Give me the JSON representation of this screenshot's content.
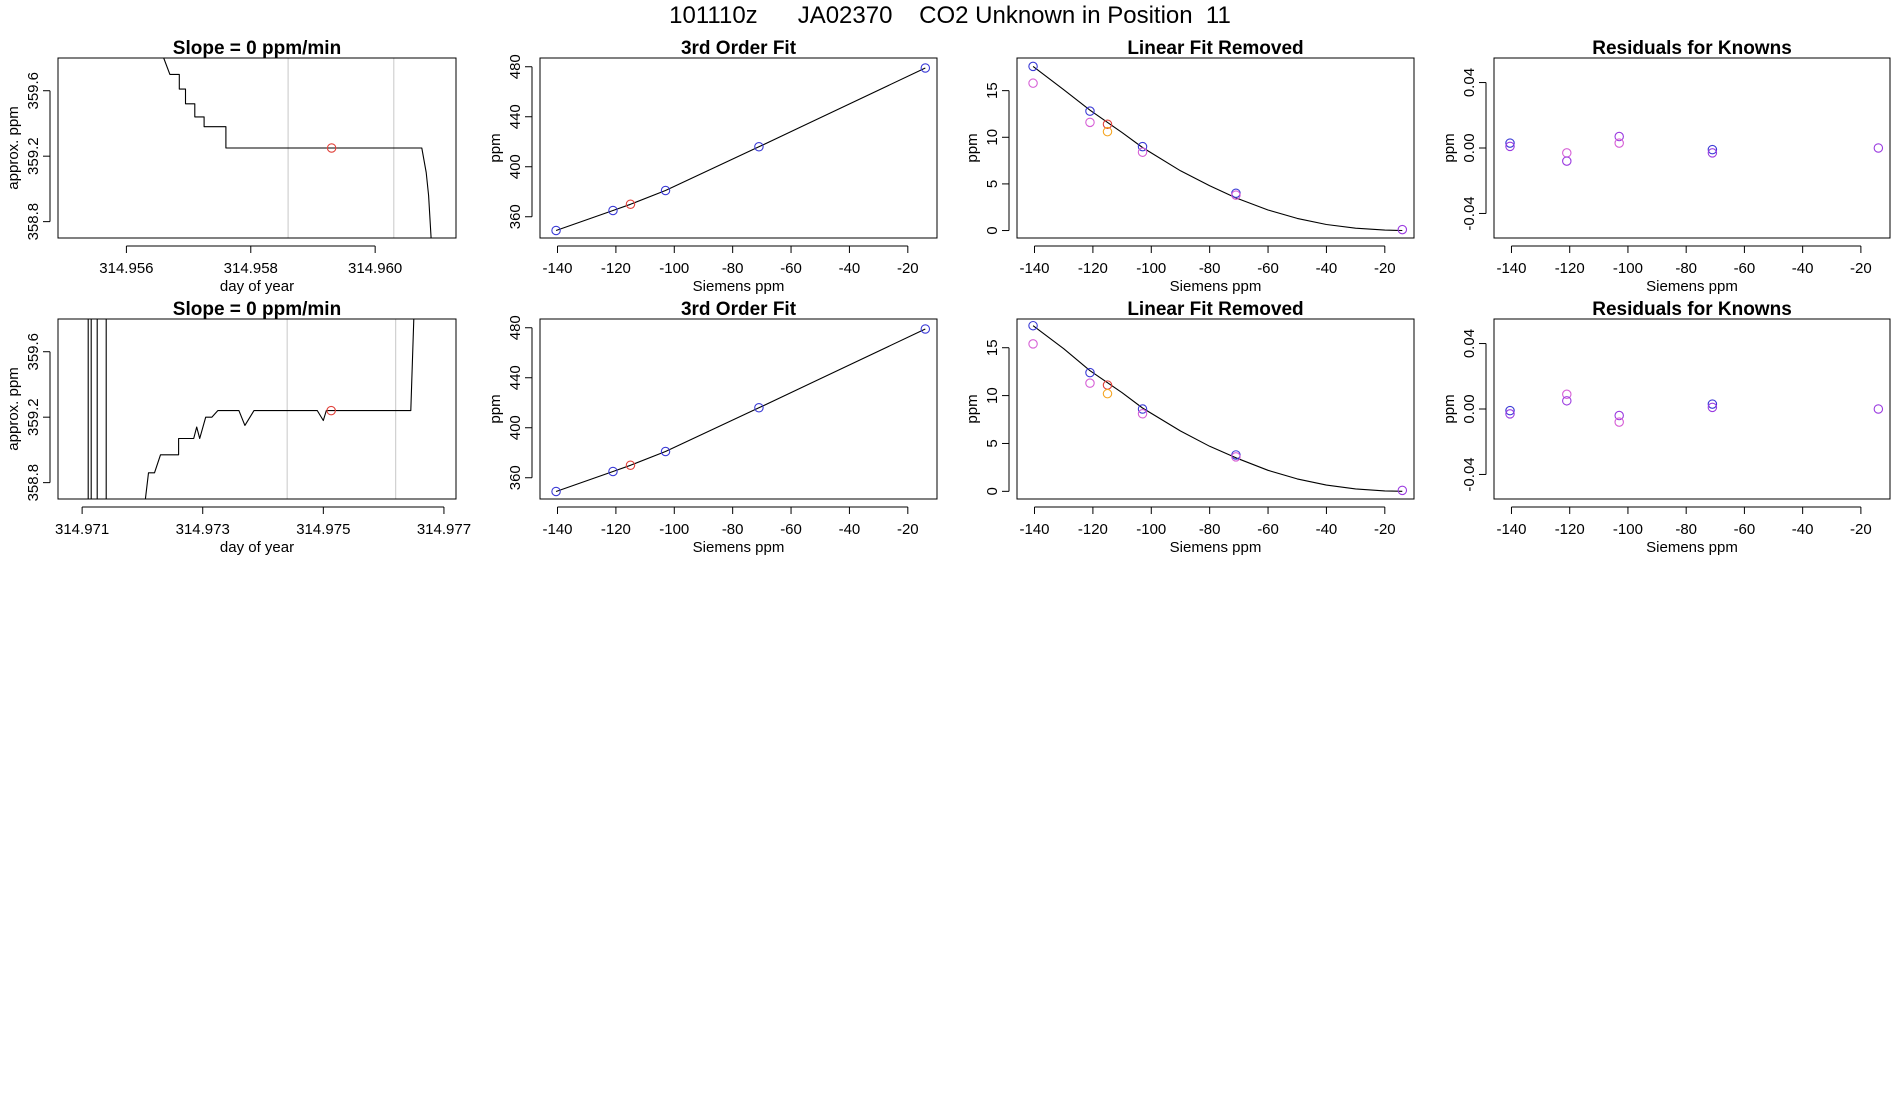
{
  "header": {
    "date_code": "101110z",
    "tank_id": "JA02370",
    "description": "CO2 Unknown in Position  11"
  },
  "colors": {
    "standard": "#3b3bd6",
    "unknown": "#e0413a",
    "purple": "#9b3be0",
    "magenta": "#d65fd6",
    "orange": "#f5a623",
    "line": "#000000",
    "grid": "#c8c8c8"
  },
  "chart_data": [
    {
      "id": "r1c1",
      "row": 0,
      "col": 0,
      "type": "line",
      "title": "Slope =  0  ppm/min",
      "xlabel": "day of year",
      "ylabel": "approx. ppm",
      "xlim": [
        314.9549,
        314.9613
      ],
      "ylim": [
        358.7,
        359.8
      ],
      "xticks": [
        314.956,
        314.958,
        314.96
      ],
      "xtick_labels": [
        "314.956",
        "314.958",
        "314.960"
      ],
      "yticks": [
        358.8,
        359.2,
        359.6
      ],
      "ytick_labels": [
        "358.8",
        "359.2",
        "359.6"
      ],
      "vlines": [
        314.9586,
        314.9603
      ],
      "trace": [
        [
          314.9566,
          359.8
        ],
        [
          314.9567,
          359.7
        ],
        [
          314.95685,
          359.7
        ],
        [
          314.95685,
          359.61
        ],
        [
          314.95695,
          359.61
        ],
        [
          314.95695,
          359.52
        ],
        [
          314.9571,
          359.52
        ],
        [
          314.9571,
          359.44
        ],
        [
          314.95725,
          359.44
        ],
        [
          314.95725,
          359.38
        ],
        [
          314.9576,
          359.38
        ],
        [
          314.9576,
          359.25
        ],
        [
          314.96075,
          359.25
        ],
        [
          314.96082,
          359.1
        ],
        [
          314.96086,
          358.96
        ],
        [
          314.9609,
          358.7
        ]
      ],
      "points": [
        {
          "x": 314.9593,
          "y": 359.25,
          "color": "unknown"
        }
      ]
    },
    {
      "id": "r1c2",
      "row": 0,
      "col": 1,
      "type": "scatter",
      "title": "3rd Order Fit",
      "xlabel": "Siemens ppm",
      "ylabel": "ppm",
      "xlim": [
        -146,
        -10
      ],
      "ylim": [
        343,
        487
      ],
      "xticks": [
        -140,
        -120,
        -100,
        -80,
        -60,
        -40,
        -20
      ],
      "xtick_labels": [
        "-140",
        "-120",
        "-100",
        "-80",
        "-60",
        "-40",
        "-20"
      ],
      "yticks": [
        360,
        400,
        440,
        480
      ],
      "ytick_labels": [
        "360",
        "400",
        "440",
        "480"
      ],
      "curve": [
        [
          -140.5,
          349
        ],
        [
          -121,
          365
        ],
        [
          -115,
          370
        ],
        [
          -103,
          381
        ],
        [
          -71,
          416
        ],
        [
          -14,
          479
        ]
      ],
      "points": [
        {
          "x": -140.5,
          "y": 349,
          "color": "standard"
        },
        {
          "x": -121,
          "y": 365,
          "color": "standard"
        },
        {
          "x": -115,
          "y": 370,
          "color": "unknown"
        },
        {
          "x": -103,
          "y": 381,
          "color": "standard"
        },
        {
          "x": -71,
          "y": 416,
          "color": "standard"
        },
        {
          "x": -14,
          "y": 479,
          "color": "standard"
        }
      ]
    },
    {
      "id": "r1c3",
      "row": 0,
      "col": 2,
      "type": "scatter",
      "title": "Linear Fit Removed",
      "xlabel": "Siemens ppm",
      "ylabel": "ppm",
      "xlim": [
        -146,
        -10
      ],
      "ylim": [
        -0.8,
        18.5
      ],
      "xticks": [
        -140,
        -120,
        -100,
        -80,
        -60,
        -40,
        -20
      ],
      "xtick_labels": [
        "-140",
        "-120",
        "-100",
        "-80",
        "-60",
        "-40",
        "-20"
      ],
      "yticks": [
        0,
        5,
        10,
        15
      ],
      "ytick_labels": [
        "0",
        "5",
        "10",
        "15"
      ],
      "curve": [
        [
          -140.5,
          17.6
        ],
        [
          -130,
          15.1
        ],
        [
          -121,
          12.9
        ],
        [
          -110,
          10.5
        ],
        [
          -103,
          8.9
        ],
        [
          -90,
          6.4
        ],
        [
          -80,
          4.8
        ],
        [
          -71,
          3.5
        ],
        [
          -60,
          2.2
        ],
        [
          -50,
          1.3
        ],
        [
          -40,
          0.65
        ],
        [
          -30,
          0.25
        ],
        [
          -20,
          0.05
        ],
        [
          -14,
          0.0
        ]
      ],
      "points": [
        {
          "x": -140.5,
          "y": 17.6,
          "color": "standard"
        },
        {
          "x": -140.5,
          "y": 15.8,
          "color": "magenta"
        },
        {
          "x": -121,
          "y": 12.8,
          "color": "standard"
        },
        {
          "x": -121,
          "y": 11.6,
          "color": "magenta"
        },
        {
          "x": -115,
          "y": 11.4,
          "color": "unknown"
        },
        {
          "x": -115,
          "y": 10.6,
          "color": "orange"
        },
        {
          "x": -103,
          "y": 9.0,
          "color": "standard"
        },
        {
          "x": -103,
          "y": 8.4,
          "color": "magenta"
        },
        {
          "x": -71,
          "y": 4.0,
          "color": "standard"
        },
        {
          "x": -71,
          "y": 3.8,
          "color": "magenta"
        },
        {
          "x": -14,
          "y": 0.1,
          "color": "purple"
        }
      ]
    },
    {
      "id": "r1c4",
      "row": 0,
      "col": 3,
      "type": "scatter",
      "title": "Residuals for Knowns",
      "xlabel": "Siemens ppm",
      "ylabel": "ppm",
      "xlim": [
        -146,
        -10
      ],
      "ylim": [
        -0.055,
        0.055
      ],
      "xticks": [
        -140,
        -120,
        -100,
        -80,
        -60,
        -40,
        -20
      ],
      "xtick_labels": [
        "-140",
        "-120",
        "-100",
        "-80",
        "-60",
        "-40",
        "-20"
      ],
      "yticks": [
        -0.04,
        0.0,
        0.04
      ],
      "ytick_labels": [
        "-0.04",
        "0.00",
        "0.04"
      ],
      "points": [
        {
          "x": -140.5,
          "y": 0.003,
          "color": "standard"
        },
        {
          "x": -140.5,
          "y": 0.001,
          "color": "purple"
        },
        {
          "x": -121,
          "y": -0.003,
          "color": "magenta"
        },
        {
          "x": -121,
          "y": -0.008,
          "color": "purple"
        },
        {
          "x": -103,
          "y": 0.007,
          "color": "purple"
        },
        {
          "x": -103,
          "y": 0.003,
          "color": "magenta"
        },
        {
          "x": -71,
          "y": -0.001,
          "color": "standard"
        },
        {
          "x": -71,
          "y": -0.003,
          "color": "purple"
        },
        {
          "x": -14,
          "y": 0.0,
          "color": "purple"
        }
      ]
    },
    {
      "id": "r2c1",
      "row": 1,
      "col": 0,
      "type": "line",
      "title": "Slope =  0  ppm/min",
      "xlabel": "day of year",
      "ylabel": "approx. ppm",
      "xlim": [
        314.9706,
        314.9772
      ],
      "ylim": [
        358.7,
        359.8
      ],
      "xticks": [
        314.971,
        314.973,
        314.975,
        314.977
      ],
      "xtick_labels": [
        "314.971",
        "314.973",
        "314.975",
        "314.977"
      ],
      "yticks": [
        358.8,
        359.2,
        359.6
      ],
      "ytick_labels": [
        "358.8",
        "359.2",
        "359.6"
      ],
      "vlines": [
        314.9744,
        314.9762
      ],
      "trace": [
        [
          314.9711,
          358.7
        ],
        [
          314.9711,
          359.8
        ],
        [
          314.97115,
          359.8
        ],
        [
          314.97115,
          358.7
        ],
        [
          314.97125,
          358.7
        ],
        [
          314.97125,
          359.8
        ],
        [
          314.9714,
          359.8
        ],
        [
          314.9714,
          358.7
        ],
        [
          314.97205,
          358.7
        ],
        [
          314.9721,
          358.86
        ],
        [
          314.9722,
          358.86
        ],
        [
          314.9723,
          358.97
        ],
        [
          314.9726,
          358.97
        ],
        [
          314.9726,
          359.07
        ],
        [
          314.97285,
          359.07
        ],
        [
          314.9729,
          359.14
        ],
        [
          314.97295,
          359.07
        ],
        [
          314.97305,
          359.2
        ],
        [
          314.97315,
          359.2
        ],
        [
          314.97325,
          359.24
        ],
        [
          314.9736,
          359.24
        ],
        [
          314.9737,
          359.15
        ],
        [
          314.97385,
          359.24
        ],
        [
          314.9749,
          359.24
        ],
        [
          314.975,
          359.18
        ],
        [
          314.97505,
          359.24
        ],
        [
          314.97645,
          359.24
        ],
        [
          314.9765,
          359.8
        ]
      ],
      "points": [
        {
          "x": 314.97513,
          "y": 359.24,
          "color": "unknown"
        }
      ]
    },
    {
      "id": "r2c2",
      "row": 1,
      "col": 1,
      "type": "scatter",
      "title": "3rd Order Fit",
      "xlabel": "Siemens ppm",
      "ylabel": "ppm",
      "xlim": [
        -146,
        -10
      ],
      "ylim": [
        343,
        487
      ],
      "xticks": [
        -140,
        -120,
        -100,
        -80,
        -60,
        -40,
        -20
      ],
      "xtick_labels": [
        "-140",
        "-120",
        "-100",
        "-80",
        "-60",
        "-40",
        "-20"
      ],
      "yticks": [
        360,
        400,
        440,
        480
      ],
      "ytick_labels": [
        "360",
        "400",
        "440",
        "480"
      ],
      "curve": [
        [
          -140.5,
          349
        ],
        [
          -121,
          365
        ],
        [
          -115,
          370
        ],
        [
          -103,
          381
        ],
        [
          -71,
          416
        ],
        [
          -14,
          479
        ]
      ],
      "points": [
        {
          "x": -140.5,
          "y": 349,
          "color": "standard"
        },
        {
          "x": -121,
          "y": 365,
          "color": "standard"
        },
        {
          "x": -115,
          "y": 370,
          "color": "unknown"
        },
        {
          "x": -103,
          "y": 381,
          "color": "standard"
        },
        {
          "x": -71,
          "y": 416,
          "color": "standard"
        },
        {
          "x": -14,
          "y": 479,
          "color": "standard"
        }
      ]
    },
    {
      "id": "r2c3",
      "row": 1,
      "col": 2,
      "type": "scatter",
      "title": "Linear Fit Removed",
      "xlabel": "Siemens ppm",
      "ylabel": "ppm",
      "xlim": [
        -146,
        -10
      ],
      "ylim": [
        -0.8,
        18.0
      ],
      "xticks": [
        -140,
        -120,
        -100,
        -80,
        -60,
        -40,
        -20
      ],
      "xtick_labels": [
        "-140",
        "-120",
        "-100",
        "-80",
        "-60",
        "-40",
        "-20"
      ],
      "yticks": [
        0,
        5,
        10,
        15
      ],
      "ytick_labels": [
        "0",
        "5",
        "10",
        "15"
      ],
      "curve": [
        [
          -140.5,
          17.3
        ],
        [
          -130,
          14.9
        ],
        [
          -121,
          12.6
        ],
        [
          -110,
          10.3
        ],
        [
          -103,
          8.7
        ],
        [
          -90,
          6.3
        ],
        [
          -80,
          4.7
        ],
        [
          -71,
          3.5
        ],
        [
          -60,
          2.2
        ],
        [
          -50,
          1.3
        ],
        [
          -40,
          0.65
        ],
        [
          -30,
          0.25
        ],
        [
          -20,
          0.05
        ],
        [
          -14,
          0.0
        ]
      ],
      "points": [
        {
          "x": -140.5,
          "y": 17.3,
          "color": "standard"
        },
        {
          "x": -140.5,
          "y": 15.4,
          "color": "magenta"
        },
        {
          "x": -121,
          "y": 12.4,
          "color": "standard"
        },
        {
          "x": -121,
          "y": 11.3,
          "color": "magenta"
        },
        {
          "x": -115,
          "y": 11.1,
          "color": "unknown"
        },
        {
          "x": -115,
          "y": 10.2,
          "color": "orange"
        },
        {
          "x": -103,
          "y": 8.6,
          "color": "standard"
        },
        {
          "x": -103,
          "y": 8.1,
          "color": "magenta"
        },
        {
          "x": -71,
          "y": 3.8,
          "color": "standard"
        },
        {
          "x": -71,
          "y": 3.6,
          "color": "magenta"
        },
        {
          "x": -14,
          "y": 0.1,
          "color": "purple"
        }
      ]
    },
    {
      "id": "r2c4",
      "row": 1,
      "col": 3,
      "type": "scatter",
      "title": "Residuals for Knowns",
      "xlabel": "Siemens ppm",
      "ylabel": "ppm",
      "xlim": [
        -146,
        -10
      ],
      "ylim": [
        -0.055,
        0.055
      ],
      "xticks": [
        -140,
        -120,
        -100,
        -80,
        -60,
        -40,
        -20
      ],
      "xtick_labels": [
        "-140",
        "-120",
        "-100",
        "-80",
        "-60",
        "-40",
        "-20"
      ],
      "yticks": [
        -0.04,
        0.0,
        0.04
      ],
      "ytick_labels": [
        "-0.04",
        "0.00",
        "0.04"
      ],
      "points": [
        {
          "x": -140.5,
          "y": -0.001,
          "color": "standard"
        },
        {
          "x": -140.5,
          "y": -0.003,
          "color": "purple"
        },
        {
          "x": -121,
          "y": 0.009,
          "color": "magenta"
        },
        {
          "x": -121,
          "y": 0.005,
          "color": "purple"
        },
        {
          "x": -103,
          "y": -0.004,
          "color": "purple"
        },
        {
          "x": -103,
          "y": -0.008,
          "color": "magenta"
        },
        {
          "x": -71,
          "y": 0.003,
          "color": "standard"
        },
        {
          "x": -71,
          "y": 0.001,
          "color": "purple"
        },
        {
          "x": -14,
          "y": 0.0,
          "color": "purple"
        }
      ]
    }
  ]
}
